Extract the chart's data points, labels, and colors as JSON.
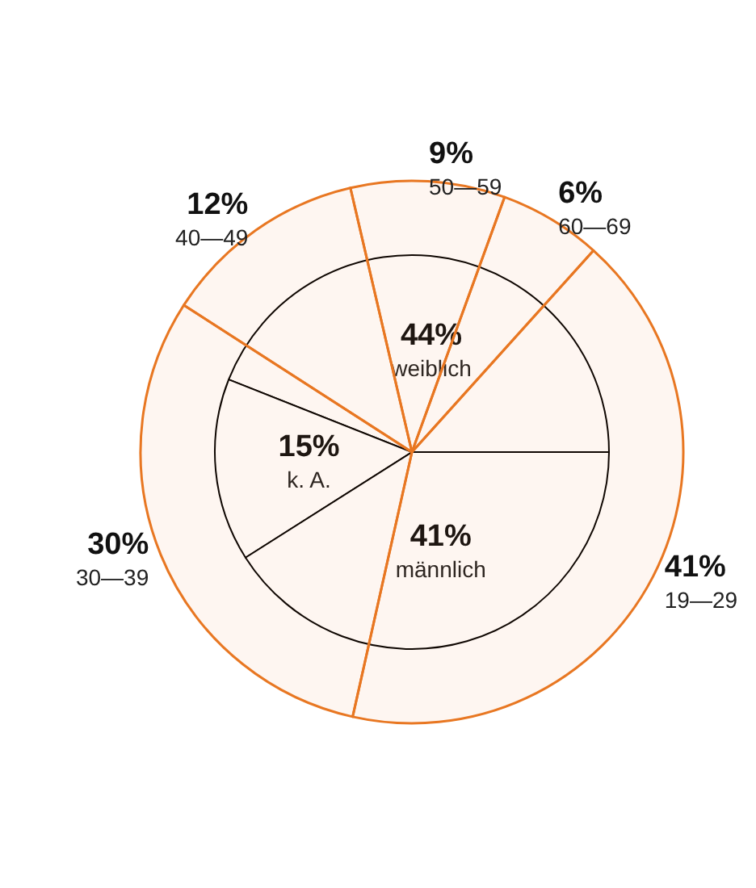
{
  "chart_data": [
    {
      "type": "pie",
      "categories": [
        "weiblich",
        "k. A.",
        "männlich"
      ],
      "values": [
        44,
        15,
        41
      ],
      "value_labels": [
        "44%",
        "15%",
        "41%"
      ],
      "colors": [
        "#ffffff",
        "#ffffff",
        "#ffffff"
      ]
    },
    {
      "type": "pie",
      "categories": [
        "60—69",
        "50—59",
        "40—49",
        "30—39",
        "19—29"
      ],
      "values": [
        6,
        9,
        12,
        30,
        41
      ],
      "value_labels": [
        "6%",
        "9%",
        "12%",
        "30%",
        "41%"
      ],
      "colors": [
        "#e87722",
        "#e87722",
        "#e87722",
        "#e87722",
        "#e87722"
      ]
    }
  ]
}
